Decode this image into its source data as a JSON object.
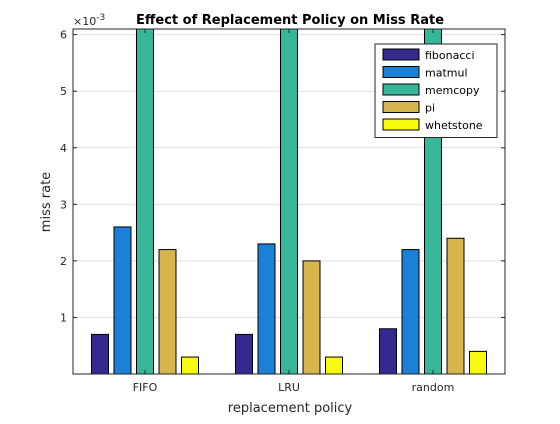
{
  "chart_data": {
    "type": "bar",
    "title": "Effect of Replacement Policy on Miss Rate",
    "xlabel": "replacement policy",
    "ylabel": "miss rate",
    "exponent_label": "×10",
    "exponent_power": "-3",
    "scale_factor": 0.001,
    "categories": [
      "FIFO",
      "LRU",
      "random"
    ],
    "ylim": [
      0,
      6.1
    ],
    "yticks": [
      1,
      2,
      3,
      4,
      5,
      6
    ],
    "grid": "horizontal",
    "legend_position": "top-right",
    "series": [
      {
        "name": "fibonacci",
        "color": "#342a8d",
        "values": [
          0.7,
          0.7,
          0.8
        ]
      },
      {
        "name": "matmul",
        "color": "#1a80d8",
        "values": [
          2.6,
          2.3,
          2.2
        ]
      },
      {
        "name": "memcopy",
        "color": "#36b79a",
        "values": [
          6.1,
          6.1,
          6.1
        ]
      },
      {
        "name": "pi",
        "color": "#d5b54c",
        "values": [
          2.2,
          2.0,
          2.4
        ]
      },
      {
        "name": "whetstone",
        "color": "#f9f90e",
        "values": [
          0.3,
          0.3,
          0.4
        ]
      }
    ]
  }
}
